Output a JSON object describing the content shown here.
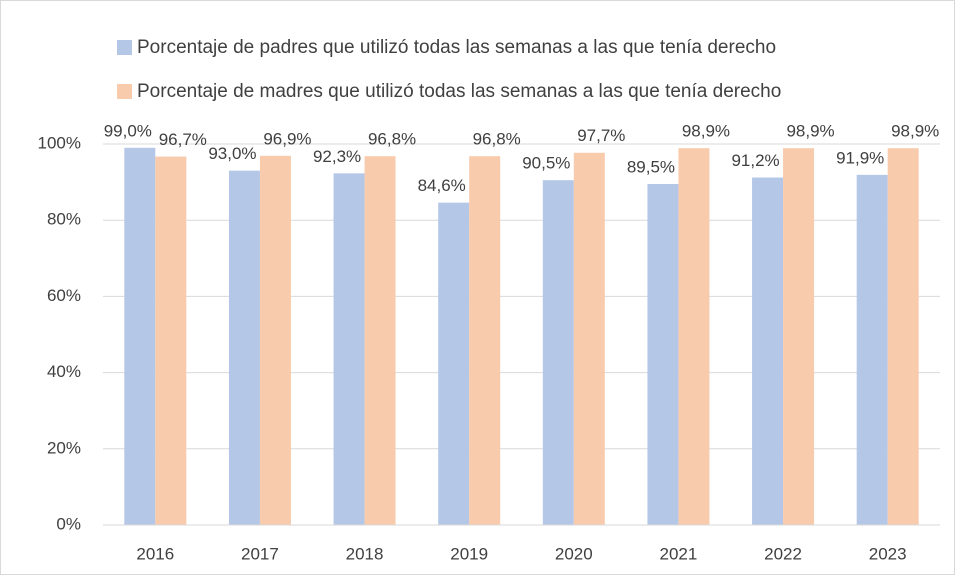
{
  "chart_data": {
    "type": "bar",
    "categories": [
      "2016",
      "2017",
      "2018",
      "2019",
      "2020",
      "2021",
      "2022",
      "2023"
    ],
    "series": [
      {
        "name": "Porcentaje de padres que utilizó todas las semanas a las que tenía derecho",
        "color": "#b4c7e7",
        "values": [
          99.0,
          93.0,
          92.3,
          84.6,
          90.5,
          89.5,
          91.2,
          91.9
        ],
        "value_labels": [
          "99,0%",
          "93,0%",
          "92,3%",
          "84,6%",
          "90,5%",
          "89,5%",
          "91,2%",
          "91,9%"
        ]
      },
      {
        "name": "Porcentaje de madres que utilizó todas las semanas a las que tenía derecho",
        "color": "#f8cbad",
        "values": [
          96.7,
          96.9,
          96.8,
          96.8,
          97.7,
          98.9,
          98.9,
          98.9
        ],
        "value_labels": [
          "96,7%",
          "96,9%",
          "96,8%",
          "96,8%",
          "97,7%",
          "98,9%",
          "98,9%",
          "98,9%"
        ]
      }
    ],
    "ylim": [
      0,
      100
    ],
    "yticks": [
      {
        "value": 0,
        "label": "0%"
      },
      {
        "value": 20,
        "label": "20%"
      },
      {
        "value": 40,
        "label": "40%"
      },
      {
        "value": 60,
        "label": "60%"
      },
      {
        "value": 80,
        "label": "80%"
      },
      {
        "value": 100,
        "label": "100%"
      }
    ],
    "grid": true
  }
}
